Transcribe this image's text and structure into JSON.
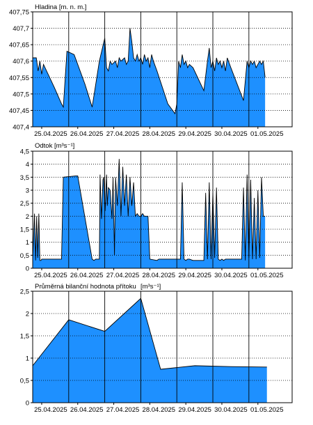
{
  "colors": {
    "fill": "#1e90ff",
    "line": "#000000",
    "grid": "#000000",
    "background": "#ffffff"
  },
  "chart_data": [
    {
      "type": "area",
      "title": "Hladina [m. n. m.]",
      "x_tick_labels": [
        "25.04.2025",
        "26.04.2025",
        "27.04.2025",
        "28.04.2025",
        "29.04.2025",
        "30.04.2025",
        "01.05.2025"
      ],
      "x_range": [
        24.75,
        31.95
      ],
      "ylim": [
        407.4,
        407.75
      ],
      "y_tick_labels": [
        "407,4",
        "407,45",
        "407,5",
        "407,55",
        "407,6",
        "407,65",
        "407,7",
        "407,75"
      ],
      "y_ticks": [
        407.4,
        407.45,
        407.5,
        407.55,
        407.6,
        407.65,
        407.7,
        407.75
      ],
      "grid": "dotted horizontal, solid vertical at day boundaries",
      "series": [
        {
          "x": [
            24.75,
            24.85,
            24.9,
            24.95,
            25.0,
            25.05,
            25.35,
            25.55,
            25.6,
            25.7,
            25.9,
            26.2,
            26.4,
            26.6,
            26.75,
            26.8,
            26.85,
            26.9,
            26.95,
            27.05,
            27.1,
            27.15,
            27.2,
            27.3,
            27.35,
            27.4,
            27.45,
            27.5,
            27.55,
            27.6,
            27.65,
            27.7,
            27.75,
            27.8,
            27.85,
            27.9,
            27.95,
            28.0,
            28.05,
            28.1,
            28.2,
            28.5,
            28.7,
            28.75,
            28.8,
            28.85,
            28.9,
            28.95,
            29.0,
            29.05,
            29.1,
            29.2,
            29.5,
            29.6,
            29.65,
            29.7,
            29.75,
            29.8,
            29.85,
            29.9,
            29.95,
            30.0,
            30.05,
            30.1,
            30.15,
            30.25,
            30.6,
            30.7,
            30.75,
            30.8,
            30.85,
            30.9,
            30.95,
            31.05,
            31.1,
            31.15,
            31.2
          ],
          "y": [
            407.61,
            407.61,
            407.57,
            407.6,
            407.56,
            407.59,
            407.52,
            407.47,
            407.46,
            407.63,
            407.62,
            407.53,
            407.46,
            407.6,
            407.67,
            407.58,
            407.57,
            407.6,
            407.59,
            407.6,
            407.58,
            407.61,
            407.6,
            407.61,
            407.59,
            407.6,
            407.7,
            407.66,
            407.61,
            407.6,
            407.62,
            407.6,
            407.61,
            407.59,
            407.62,
            407.6,
            407.61,
            407.58,
            407.62,
            407.6,
            407.57,
            407.47,
            407.44,
            407.47,
            407.6,
            407.58,
            407.62,
            407.59,
            407.6,
            407.58,
            407.59,
            407.58,
            407.51,
            407.6,
            407.64,
            407.58,
            407.6,
            407.57,
            407.61,
            407.59,
            407.6,
            407.58,
            407.6,
            407.57,
            407.61,
            407.58,
            407.48,
            407.6,
            407.58,
            407.6,
            407.59,
            407.6,
            407.58,
            407.6,
            407.59,
            407.6,
            407.55
          ]
        }
      ]
    },
    {
      "type": "area",
      "title": "Odtok [m³s⁻¹]",
      "x_tick_labels": [
        "25.04.2025",
        "26.04.2025",
        "27.04.2025",
        "28.04.2025",
        "29.04.2025",
        "30.04.2025",
        "01.05.2025"
      ],
      "x_range": [
        24.75,
        31.95
      ],
      "ylim": [
        0,
        4.5
      ],
      "y_tick_labels": [
        "0",
        "0,5",
        "1",
        "1,5",
        "2",
        "2,5",
        "3",
        "3,5",
        "4",
        "4,5"
      ],
      "y_ticks": [
        0,
        0.5,
        1,
        1.5,
        2,
        2.5,
        3,
        3.5,
        4,
        4.5
      ],
      "grid": "dotted horizontal, solid vertical at day boundaries",
      "series": [
        {
          "x": [
            24.75,
            24.8,
            24.83,
            24.86,
            24.89,
            24.92,
            24.95,
            24.98,
            25.0,
            25.5,
            25.55,
            25.6,
            25.95,
            26.0,
            26.4,
            26.45,
            26.5,
            26.6,
            26.62,
            26.66,
            26.7,
            26.72,
            26.76,
            26.8,
            26.82,
            26.85,
            26.9,
            26.95,
            26.98,
            27.02,
            27.05,
            27.1,
            27.15,
            27.2,
            27.25,
            27.3,
            27.35,
            27.4,
            27.45,
            27.5,
            27.55,
            27.6,
            27.65,
            27.7,
            27.75,
            27.8,
            27.85,
            27.9,
            27.95,
            28.0,
            28.2,
            28.25,
            28.3,
            28.6,
            28.85,
            28.9,
            28.95,
            29.0,
            29.05,
            29.1,
            29.2,
            29.5,
            29.55,
            29.6,
            29.65,
            29.7,
            29.75,
            29.8,
            29.85,
            29.9,
            29.95,
            30.0,
            30.05,
            30.1,
            30.2,
            30.55,
            30.6,
            30.65,
            30.7,
            30.75,
            30.8,
            30.85,
            30.9,
            30.95,
            31.0,
            31.05,
            31.1,
            31.15,
            31.2
          ],
          "y": [
            0.35,
            2.1,
            0.3,
            2.0,
            0.4,
            2.1,
            0.3,
            0.3,
            0.35,
            0.35,
            0.35,
            3.5,
            3.55,
            3.55,
            0.35,
            0.3,
            0.35,
            0.35,
            3.6,
            1.9,
            3.4,
            3.5,
            2.2,
            3.6,
            2.4,
            3.1,
            3.0,
            1.9,
            3.5,
            0.5,
            3.5,
            2.4,
            4.2,
            2.0,
            3.9,
            2.4,
            3.6,
            2.0,
            3.5,
            2.4,
            3.3,
            2.0,
            2.1,
            2.0,
            2.0,
            2.1,
            2.0,
            2.0,
            2.0,
            0.35,
            0.3,
            0.35,
            0.35,
            0.35,
            0.35,
            3.3,
            0.35,
            0.3,
            0.35,
            0.35,
            0.3,
            0.3,
            2.9,
            0.35,
            3.3,
            0.35,
            2.9,
            0.4,
            3.1,
            0.35,
            0.3,
            0.35,
            0.3,
            0.35,
            0.35,
            0.35,
            3.1,
            0.3,
            3.6,
            0.4,
            3.4,
            0.35,
            2.7,
            0.35,
            3.0,
            0.4,
            3.5,
            2.0,
            2.0
          ]
        }
      ]
    },
    {
      "type": "area",
      "title": "Průměrná bilanční hodnota přítoku",
      "unit": "[m³s⁻¹]",
      "x_tick_labels": [
        "25.04.2025",
        "26.04.2025",
        "27.04.2025",
        "28.04.2025",
        "29.04.2025",
        "30.04.2025",
        "01.05.2025"
      ],
      "x_range": [
        24.75,
        31.95
      ],
      "ylim": [
        0,
        2.5
      ],
      "y_tick_labels": [
        "0",
        "0,5",
        "1",
        "1,5",
        "2",
        "2,5"
      ],
      "y_ticks": [
        0,
        0.5,
        1,
        1.5,
        2,
        2.5
      ],
      "grid": "dotted horizontal, solid vertical at day boundaries",
      "series": [
        {
          "x": [
            24.75,
            25.75,
            26.75,
            27.75,
            28.3,
            29.25,
            30.25,
            31.25
          ],
          "y": [
            0.83,
            1.86,
            1.6,
            2.34,
            0.75,
            0.83,
            0.81,
            0.8
          ]
        }
      ]
    }
  ]
}
